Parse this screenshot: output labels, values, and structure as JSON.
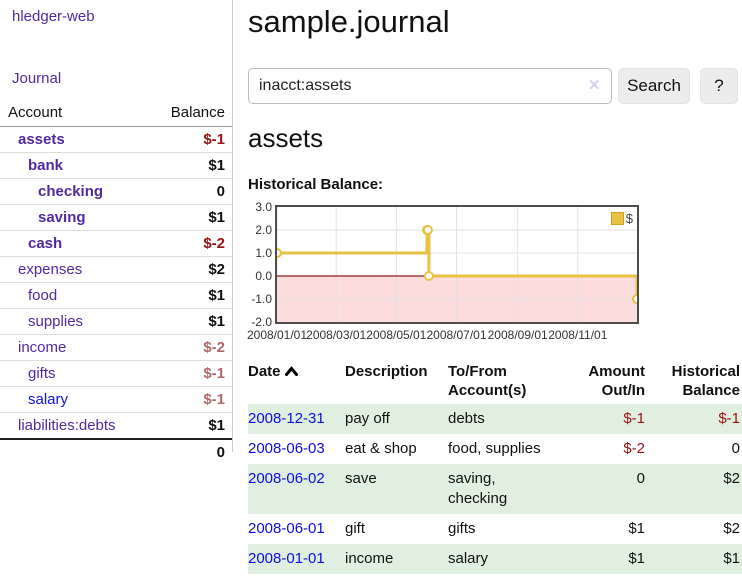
{
  "app": {
    "title": "hledger-web"
  },
  "sidebar": {
    "journal_label": "Journal",
    "accounts_table": {
      "headers": {
        "account": "Account",
        "balance": "Balance"
      },
      "rows": [
        {
          "name": "assets",
          "balance": "$-1",
          "level": 0,
          "bold": true,
          "neg": "strong"
        },
        {
          "name": "bank",
          "balance": "$1",
          "level": 1,
          "bold": true,
          "neg": "none"
        },
        {
          "name": "checking",
          "balance": "0",
          "level": 2,
          "bold": true,
          "neg": "none"
        },
        {
          "name": "saving",
          "balance": "$1",
          "level": 2,
          "bold": true,
          "neg": "none"
        },
        {
          "name": "cash",
          "balance": "$-2",
          "level": 1,
          "bold": true,
          "neg": "strong"
        },
        {
          "name": "expenses",
          "balance": "$2",
          "level": 0,
          "bold": false,
          "neg": "none"
        },
        {
          "name": "food",
          "balance": "$1",
          "level": 1,
          "bold": false,
          "neg": "none"
        },
        {
          "name": "supplies",
          "balance": "$1",
          "level": 1,
          "bold": false,
          "neg": "none"
        },
        {
          "name": "income",
          "balance": "$-2",
          "level": 0,
          "bold": false,
          "neg": "muted"
        },
        {
          "name": "gifts",
          "balance": "$-1",
          "level": 1,
          "bold": false,
          "neg": "muted"
        },
        {
          "name": "salary",
          "balance": "$-1",
          "level": 1,
          "bold": false,
          "neg": "muted",
          "link_color": "blue"
        },
        {
          "name": "liabilities:debts",
          "balance": "$1",
          "level": 0,
          "bold": false,
          "neg": "none"
        }
      ],
      "total": "0"
    }
  },
  "main": {
    "page_title": "sample.journal",
    "search": {
      "value": "inacct:assets",
      "clear_icon": "✕",
      "button_label": "Search",
      "help_label": "?"
    },
    "account_heading": "assets",
    "chart_label": "Historical Balance:"
  },
  "chart_data": {
    "type": "line",
    "title": "Historical Balance:",
    "step": true,
    "x": [
      "2008-01-01",
      "2008-06-01",
      "2008-06-02",
      "2008-06-03",
      "2008-12-31"
    ],
    "series": [
      {
        "name": "$",
        "values": [
          1,
          2,
          2,
          0,
          -1
        ]
      }
    ],
    "xlim": [
      "2008-01-01",
      "2008-12-31"
    ],
    "ylim": [
      -2,
      3
    ],
    "yticks": [
      "3.0",
      "2.0",
      "1.0",
      "0.0",
      "-1.0",
      "-2.0"
    ],
    "xticks": [
      "2008/01/01",
      "2008/03/01",
      "2008/05/01",
      "2008/07/01",
      "2008/09/01",
      "2008/11/01"
    ],
    "grid": true,
    "legend": [
      {
        "label": "$",
        "color": "#e8c240"
      }
    ],
    "legend_position": "top-right",
    "negative_region_below": 0
  },
  "register_table": {
    "columns": [
      "Date",
      "Description",
      "To/From Account(s)",
      "Amount Out/In",
      "Historical Balance"
    ],
    "sort": {
      "column": "Date",
      "direction": "asc"
    },
    "rows": [
      {
        "date": "2008-12-31",
        "description": "pay off",
        "accounts": "debts",
        "amount": "$-1",
        "balance": "$-1",
        "amount_neg": true,
        "balance_neg": true
      },
      {
        "date": "2008-06-03",
        "description": "eat & shop",
        "accounts": "food, supplies",
        "amount": "$-2",
        "balance": "0",
        "amount_neg": true,
        "balance_neg": false
      },
      {
        "date": "2008-06-02",
        "description": "save",
        "accounts": "saving, checking",
        "amount": "0",
        "balance": "$2",
        "amount_neg": false,
        "balance_neg": false
      },
      {
        "date": "2008-06-01",
        "description": "gift",
        "accounts": "gifts",
        "amount": "$1",
        "balance": "$2",
        "amount_neg": false,
        "balance_neg": false
      },
      {
        "date": "2008-01-01",
        "description": "income",
        "accounts": "salary",
        "amount": "$1",
        "balance": "$1",
        "amount_neg": false,
        "balance_neg": false
      }
    ]
  },
  "colors": {
    "link_purple": "#5229a3",
    "link_blue": "#0d0de0",
    "negative_strong": "#9c1111",
    "negative_muted": "#b36868",
    "row_stripe_green": "#e1efe0",
    "chart_line_gold": "#e8c240",
    "chart_negative_fill": "#fcdcdc",
    "chart_zero_line": "#8b1c1c",
    "chart_grid": "#e2e2e2",
    "chart_border": "#4d4d4d"
  }
}
